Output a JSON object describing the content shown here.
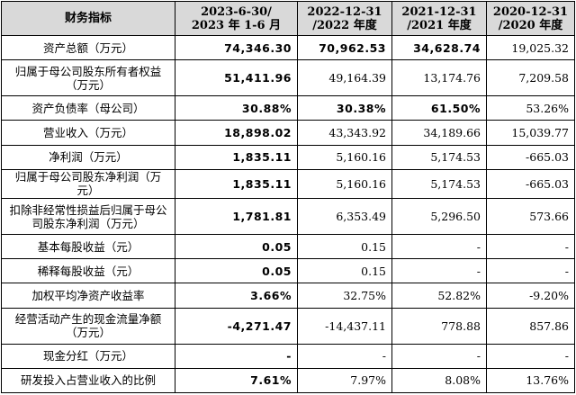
{
  "header": {
    "item": "财务指标",
    "col1": [
      "2023-6-30/",
      "2023 年 1-6 月"
    ],
    "col2": [
      "2022-12-31",
      "/2022 年度"
    ],
    "col3": [
      "2021-12-31",
      "/2021 年度"
    ],
    "col4": [
      "2020-12-31",
      "/2020 年度"
    ]
  },
  "rows": [
    {
      "label": [
        "资产总额（万元）"
      ],
      "v1": "74,346.30",
      "v2": "70,962.53",
      "v3": "34,628.74",
      "v4": "19,025.32",
      "bold": [
        true,
        true,
        true,
        false
      ]
    },
    {
      "label": [
        "归属于母公司股东所有者权益",
        "（万元）"
      ],
      "v1": "51,411.96",
      "v2": "49,164.39",
      "v3": "13,174.76",
      "v4": "7,209.58",
      "bold": [
        true,
        false,
        false,
        false
      ]
    },
    {
      "label": [
        "资产负债率（母公司）"
      ],
      "v1": "30.88%",
      "v2": "30.38%",
      "v3": "61.50%",
      "v4": "53.26%",
      "bold": [
        true,
        true,
        true,
        false
      ]
    },
    {
      "label": [
        "营业收入（万元）"
      ],
      "v1": "18,898.02",
      "v2": "43,343.92",
      "v3": "34,189.66",
      "v4": "15,039.77",
      "bold": [
        true,
        false,
        false,
        false
      ]
    },
    {
      "label": [
        "净利润（万元）"
      ],
      "v1": "1,835.11",
      "v2": "5,160.16",
      "v3": "5,174.53",
      "v4": "-665.03",
      "bold": [
        true,
        false,
        false,
        false
      ]
    },
    {
      "label": [
        "归属于母公司股东净利润（万元）"
      ],
      "v1": "1,835.11",
      "v2": "5,160.16",
      "v3": "5,174.53",
      "v4": "-665.03",
      "bold": [
        true,
        false,
        false,
        false
      ]
    },
    {
      "label": [
        "扣除非经常性损益后归属于母公",
        "司股东净利润（万元）"
      ],
      "v1": "1,781.81",
      "v2": "6,353.49",
      "v3": "5,296.50",
      "v4": "573.66",
      "bold": [
        true,
        false,
        false,
        false
      ]
    },
    {
      "label": [
        "基本每股收益（元）"
      ],
      "v1": "0.05",
      "v2": "0.15",
      "v3": "-",
      "v4": "-",
      "bold": [
        true,
        false,
        false,
        false
      ]
    },
    {
      "label": [
        "稀释每股收益（元）"
      ],
      "v1": "0.05",
      "v2": "0.15",
      "v3": "-",
      "v4": "-",
      "bold": [
        true,
        false,
        false,
        false
      ]
    },
    {
      "label": [
        "加权平均净资产收益率"
      ],
      "v1": "3.66%",
      "v2": "32.75%",
      "v3": "52.82%",
      "v4": "-9.20%",
      "bold": [
        true,
        false,
        false,
        false
      ]
    },
    {
      "label": [
        "经营活动产生的现金流量净额",
        "（万元）"
      ],
      "v1": "-4,271.47",
      "v2": "-14,437.11",
      "v3": "778.88",
      "v4": "857.86",
      "bold": [
        true,
        false,
        false,
        false
      ]
    },
    {
      "label": [
        "现金分红（万元）"
      ],
      "v1": "-",
      "v2": "-",
      "v3": "-",
      "v4": "-",
      "bold": [
        true,
        false,
        false,
        false
      ]
    },
    {
      "label": [
        "研发投入占营业收入的比例"
      ],
      "v1": "7.61%",
      "v2": "7.97%",
      "v3": "8.08%",
      "v4": "13.76%",
      "bold": [
        true,
        false,
        false,
        false
      ]
    }
  ]
}
